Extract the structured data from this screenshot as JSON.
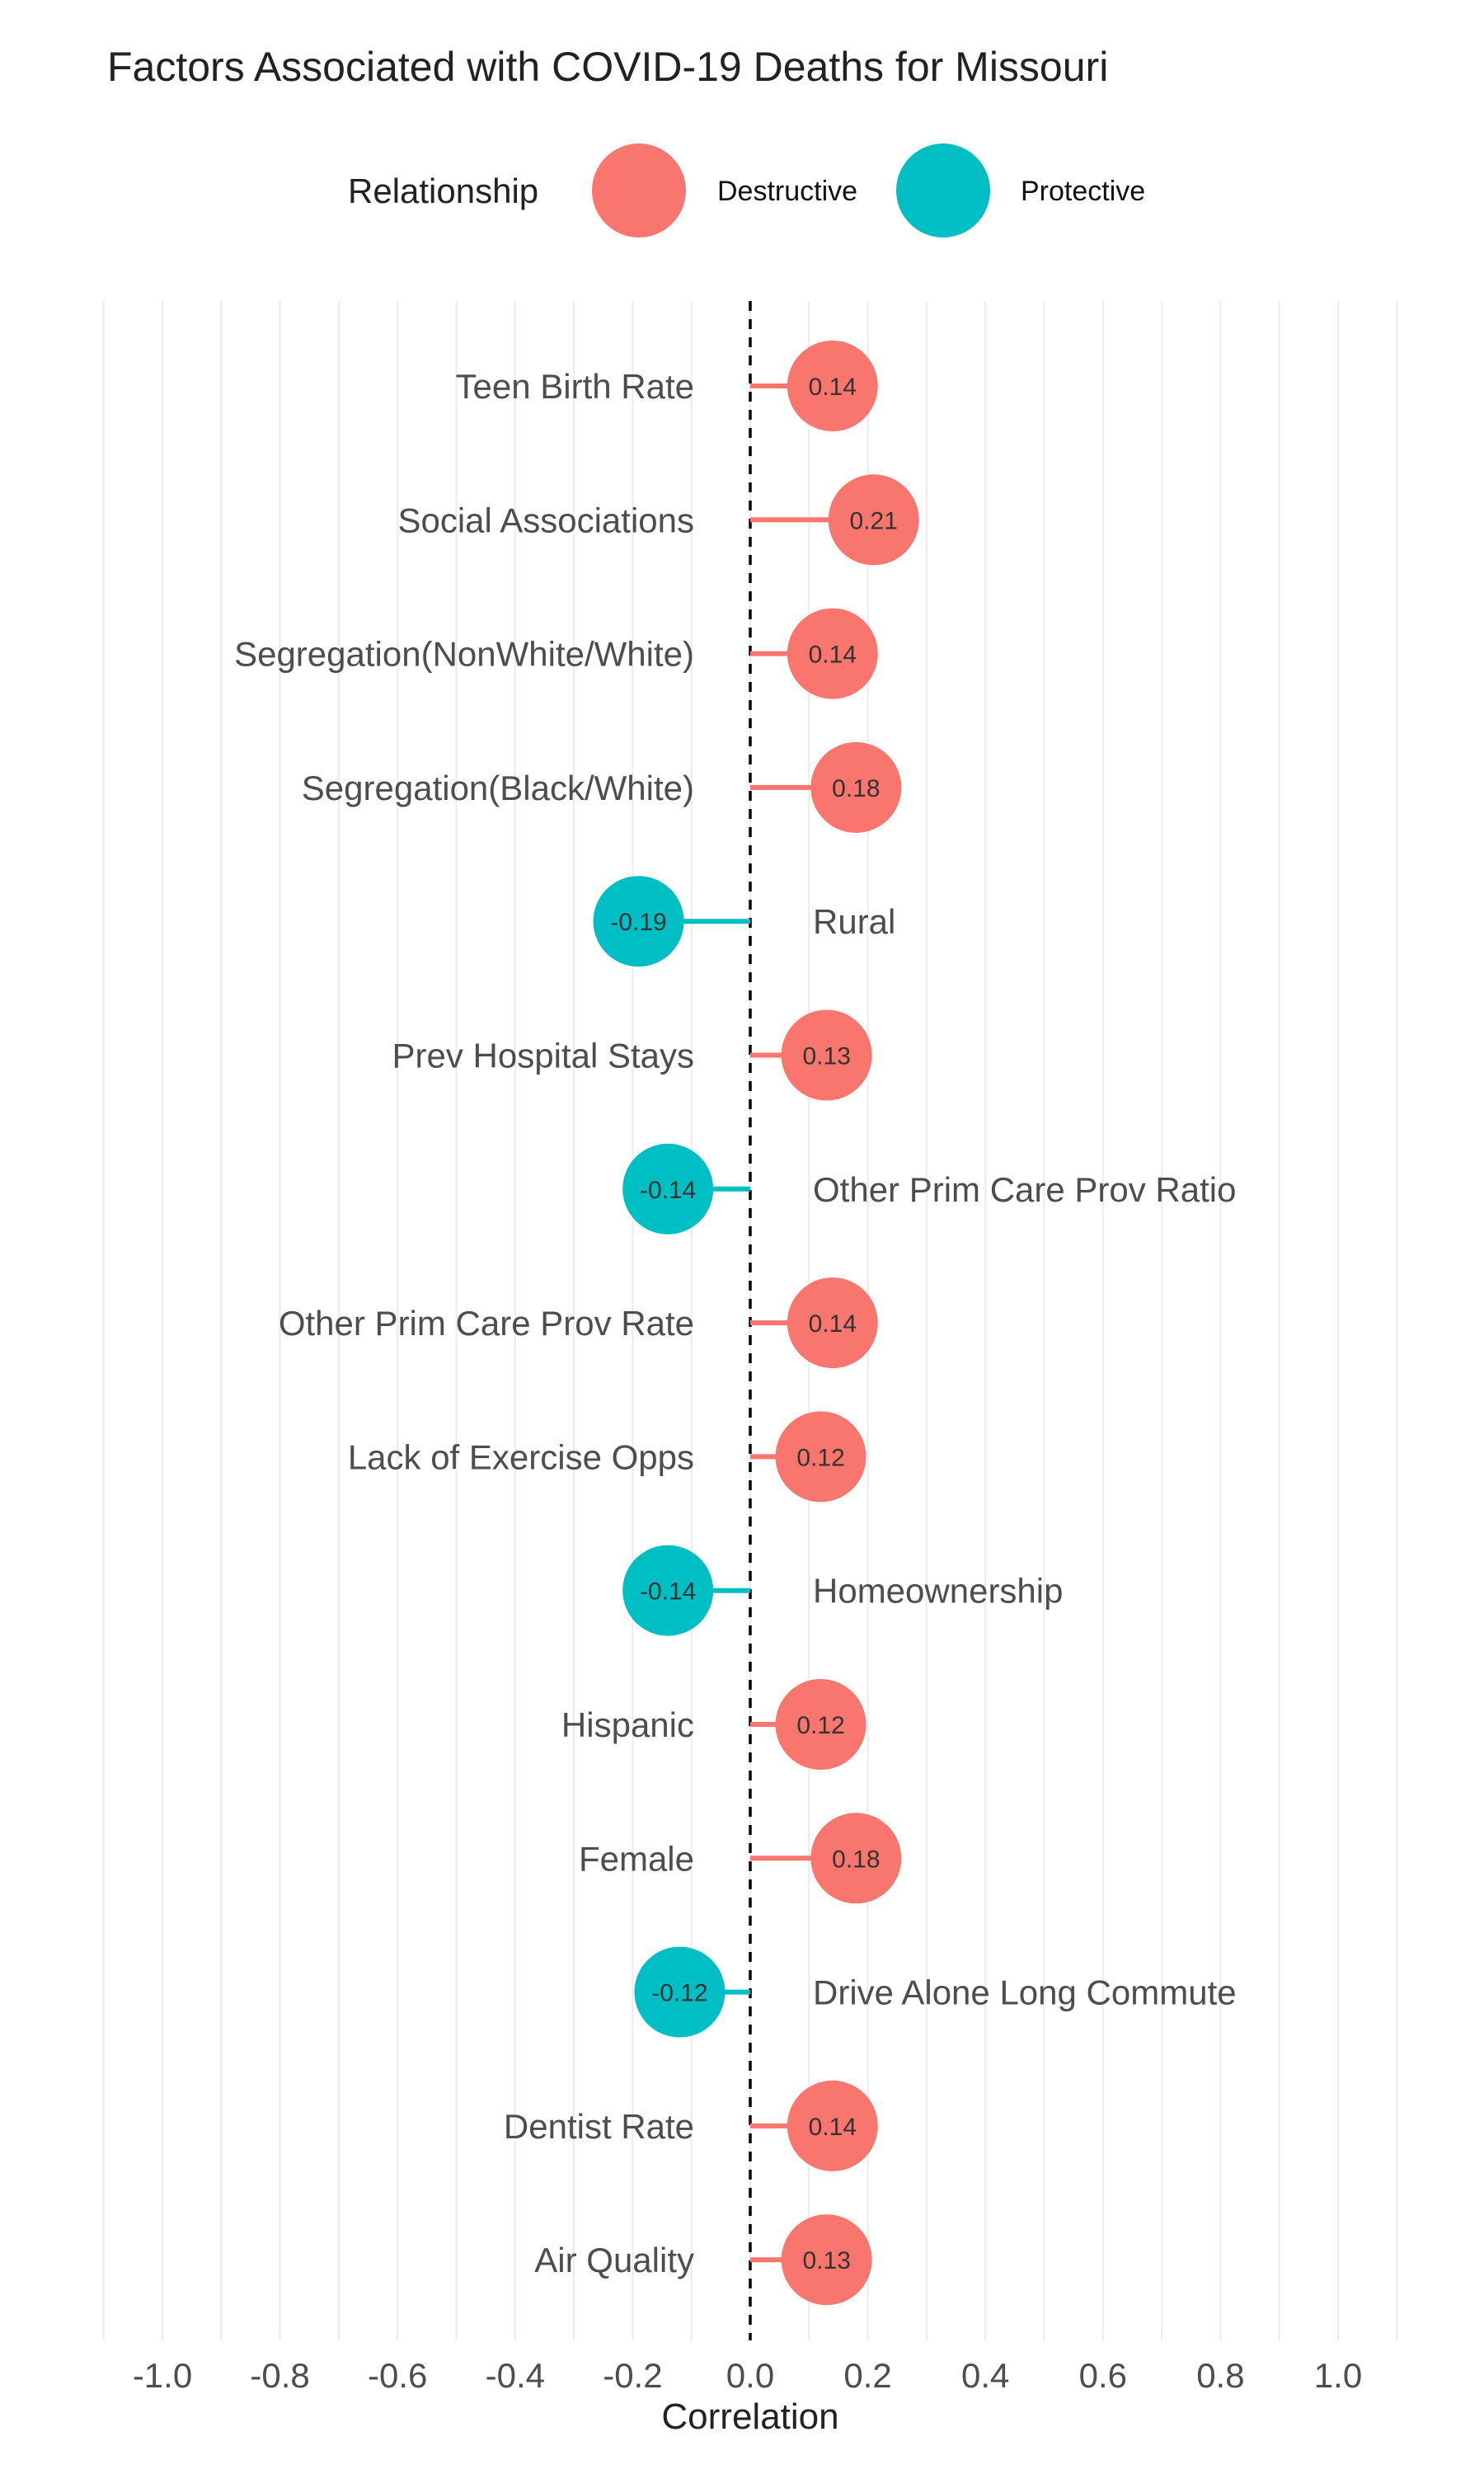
{
  "chart_data": {
    "type": "lollipop",
    "title": "Factors Associated with COVID-19 Deaths for Missouri",
    "xlabel": "Correlation",
    "ylabel": "",
    "xlim": [
      -1.1,
      1.1
    ],
    "x_ticks": [
      -1.0,
      -0.8,
      -0.6,
      -0.4,
      -0.2,
      0.0,
      0.2,
      0.4,
      0.6,
      0.8,
      1.0
    ],
    "x_tick_labels": [
      "-1.0",
      "-0.8",
      "-0.6",
      "-0.4",
      "-0.2",
      "0.0",
      "0.2",
      "0.4",
      "0.6",
      "0.8",
      "1.0"
    ],
    "grid": true,
    "legend": {
      "title": "Relationship",
      "position": "top",
      "entries": [
        {
          "label": "Destructive",
          "color": "#F8766D"
        },
        {
          "label": "Protective",
          "color": "#00BFC4"
        }
      ]
    },
    "categories": [
      "Teen Birth Rate",
      "Social Associations",
      "Segregation(NonWhite/White)",
      "Segregation(Black/White)",
      "Rural",
      "Prev Hospital Stays",
      "Other Prim Care Prov Ratio",
      "Other Prim Care Prov Rate",
      "Lack of Exercise Opps",
      "Homeownership",
      "Hispanic",
      "Female",
      "Drive Alone Long Commute",
      "Dentist Rate",
      "Air Quality"
    ],
    "values": [
      0.14,
      0.21,
      0.14,
      0.18,
      -0.19,
      0.13,
      -0.14,
      0.14,
      0.12,
      -0.14,
      0.12,
      0.18,
      -0.12,
      0.14,
      0.13
    ],
    "value_labels": [
      "0.14",
      "0.21",
      "0.14",
      "0.18",
      "-0.19",
      "0.13",
      "-0.14",
      "0.14",
      "0.12",
      "-0.14",
      "0.12",
      "0.18",
      "-0.12",
      "0.14",
      "0.13"
    ]
  }
}
